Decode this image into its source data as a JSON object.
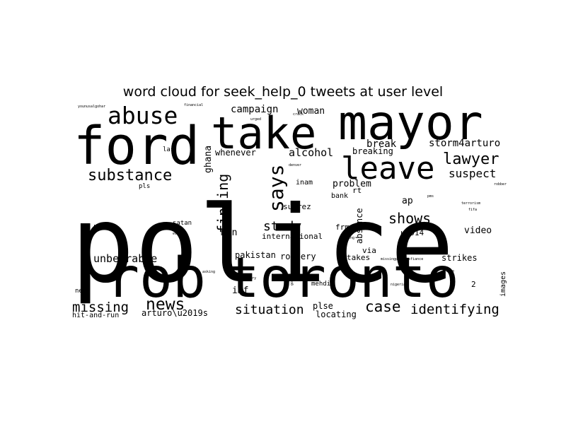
{
  "title": "word cloud for seek_help_0 tweets at user level",
  "words": [
    "police",
    "toronto",
    "rob",
    "mayor",
    "take",
    "ford",
    "leave",
    "abuse",
    "says",
    "lawyer",
    "substance",
    "news",
    "missing",
    "case",
    "identifying",
    "situation",
    "shows",
    "study",
    "finding",
    "alcohol",
    "storm4arturo",
    "suspect",
    "unbearable",
    "campaign",
    "woman",
    "break",
    "breaking",
    "whenever",
    "ghana",
    "problem",
    "video",
    "international",
    "robbery",
    "pakistan",
    "takes",
    "strikes",
    "imf",
    "man",
    "suarez",
    "inam",
    "arturo\\u2019s",
    "locating",
    "plse",
    "frm",
    "absence",
    "via",
    "bank",
    "rt",
    "ap",
    "u2014",
    "u201c",
    "satan",
    "las",
    "new",
    "hit-and-run",
    "images",
    "mehdi",
    "pls",
    "2",
    "younusalgohar",
    "financial",
    "urged",
    "crack",
    "robber",
    "gohar",
    "pms",
    "tracing",
    "terrorism",
    "nigeria",
    "fifa",
    "denver",
    "burglary",
    "asking",
    "evil",
    "fund",
    "missingpersonsfiance",
    "face"
  ]
}
